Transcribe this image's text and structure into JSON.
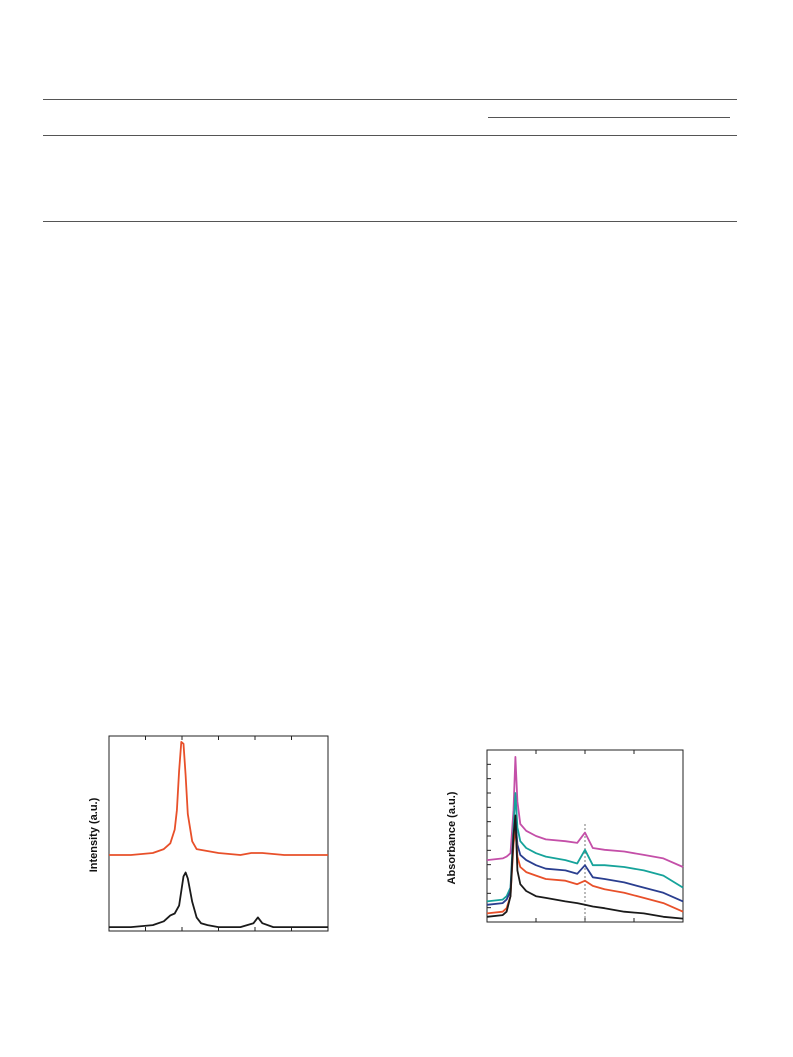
{
  "table": {
    "rules": [
      "top-rule",
      "column-group-rule",
      "header-rule",
      "bottom-rule"
    ]
  },
  "chart_data": [
    {
      "type": "line",
      "title": "",
      "xlabel": "",
      "ylabel": "Intensity (a.u.)",
      "xlim": [
        0,
        10
      ],
      "ylim": [
        0,
        1.0
      ],
      "grid": false,
      "x_ticks": [
        0,
        1,
        2,
        3,
        4,
        5,
        6
      ],
      "series": [
        {
          "color": "#e8502a",
          "x": [
            0.0,
            1.0,
            2.0,
            2.5,
            2.8,
            3.0,
            3.1,
            3.2,
            3.3,
            3.4,
            3.5,
            3.6,
            3.8,
            4.0,
            5.0,
            6.0,
            6.5,
            7.0,
            8.0,
            9.0,
            10.0
          ],
          "y": [
            0.39,
            0.39,
            0.4,
            0.42,
            0.45,
            0.52,
            0.62,
            0.82,
            0.97,
            0.96,
            0.8,
            0.6,
            0.46,
            0.42,
            0.4,
            0.39,
            0.4,
            0.4,
            0.39,
            0.39,
            0.39
          ]
        },
        {
          "color": "#1a1a1a",
          "x": [
            0.0,
            1.0,
            2.0,
            2.5,
            2.8,
            3.0,
            3.2,
            3.4,
            3.5,
            3.6,
            3.8,
            4.0,
            4.2,
            4.5,
            5.0,
            6.0,
            6.6,
            6.8,
            7.0,
            7.5,
            8.0,
            9.0,
            10.0
          ],
          "y": [
            0.02,
            0.02,
            0.03,
            0.05,
            0.08,
            0.09,
            0.13,
            0.28,
            0.3,
            0.27,
            0.15,
            0.07,
            0.04,
            0.03,
            0.02,
            0.02,
            0.04,
            0.07,
            0.04,
            0.02,
            0.02,
            0.02,
            0.02
          ]
        }
      ]
    },
    {
      "type": "line",
      "title": "",
      "xlabel": "",
      "ylabel": "Absorbance (a.u.)",
      "xlim": [
        0,
        10
      ],
      "ylim": [
        0,
        1.0
      ],
      "grid": false,
      "dashed_marker_x": 5.0,
      "series": [
        {
          "color": "#c44fa8",
          "x": [
            0.0,
            0.8,
            1.0,
            1.2,
            1.35,
            1.45,
            1.55,
            1.7,
            2.0,
            2.5,
            3.0,
            4.0,
            4.6,
            5.0,
            5.4,
            6.0,
            7.0,
            8.0,
            9.0,
            10.0
          ],
          "y": [
            0.36,
            0.37,
            0.38,
            0.4,
            0.65,
            0.96,
            0.7,
            0.57,
            0.53,
            0.5,
            0.48,
            0.47,
            0.46,
            0.52,
            0.43,
            0.42,
            0.41,
            0.39,
            0.37,
            0.32
          ]
        },
        {
          "color": "#16a39a",
          "x": [
            0.0,
            0.8,
            1.0,
            1.2,
            1.35,
            1.45,
            1.55,
            1.7,
            2.0,
            2.5,
            3.0,
            4.0,
            4.6,
            5.0,
            5.4,
            6.0,
            7.0,
            8.0,
            9.0,
            10.0
          ],
          "y": [
            0.12,
            0.13,
            0.15,
            0.2,
            0.55,
            0.75,
            0.55,
            0.47,
            0.43,
            0.4,
            0.38,
            0.36,
            0.34,
            0.42,
            0.33,
            0.33,
            0.32,
            0.3,
            0.27,
            0.2
          ]
        },
        {
          "color": "#2a3e8f",
          "x": [
            0.0,
            0.8,
            1.0,
            1.2,
            1.35,
            1.45,
            1.55,
            1.7,
            2.0,
            2.5,
            3.0,
            4.0,
            4.6,
            5.0,
            5.4,
            6.0,
            7.0,
            8.0,
            9.0,
            10.0
          ],
          "y": [
            0.1,
            0.11,
            0.13,
            0.18,
            0.5,
            0.6,
            0.45,
            0.39,
            0.36,
            0.33,
            0.31,
            0.3,
            0.28,
            0.33,
            0.26,
            0.25,
            0.23,
            0.2,
            0.17,
            0.12
          ]
        },
        {
          "color": "#e8502a",
          "x": [
            0.0,
            0.8,
            1.0,
            1.2,
            1.35,
            1.45,
            1.55,
            1.7,
            2.0,
            2.5,
            3.0,
            4.0,
            4.6,
            5.0,
            5.4,
            6.0,
            7.0,
            8.0,
            9.0,
            10.0
          ],
          "y": [
            0.05,
            0.06,
            0.08,
            0.15,
            0.45,
            0.55,
            0.38,
            0.32,
            0.29,
            0.27,
            0.25,
            0.24,
            0.22,
            0.24,
            0.21,
            0.19,
            0.17,
            0.14,
            0.11,
            0.06
          ]
        },
        {
          "color": "#1a1a1a",
          "x": [
            0.0,
            0.8,
            1.0,
            1.2,
            1.35,
            1.45,
            1.55,
            1.7,
            2.0,
            2.5,
            3.0,
            4.0,
            4.6,
            5.0,
            5.4,
            6.0,
            7.0,
            8.0,
            9.0,
            10.0
          ],
          "y": [
            0.03,
            0.04,
            0.06,
            0.15,
            0.5,
            0.62,
            0.3,
            0.22,
            0.18,
            0.15,
            0.14,
            0.12,
            0.11,
            0.1,
            0.09,
            0.08,
            0.06,
            0.05,
            0.03,
            0.02
          ]
        }
      ]
    }
  ]
}
